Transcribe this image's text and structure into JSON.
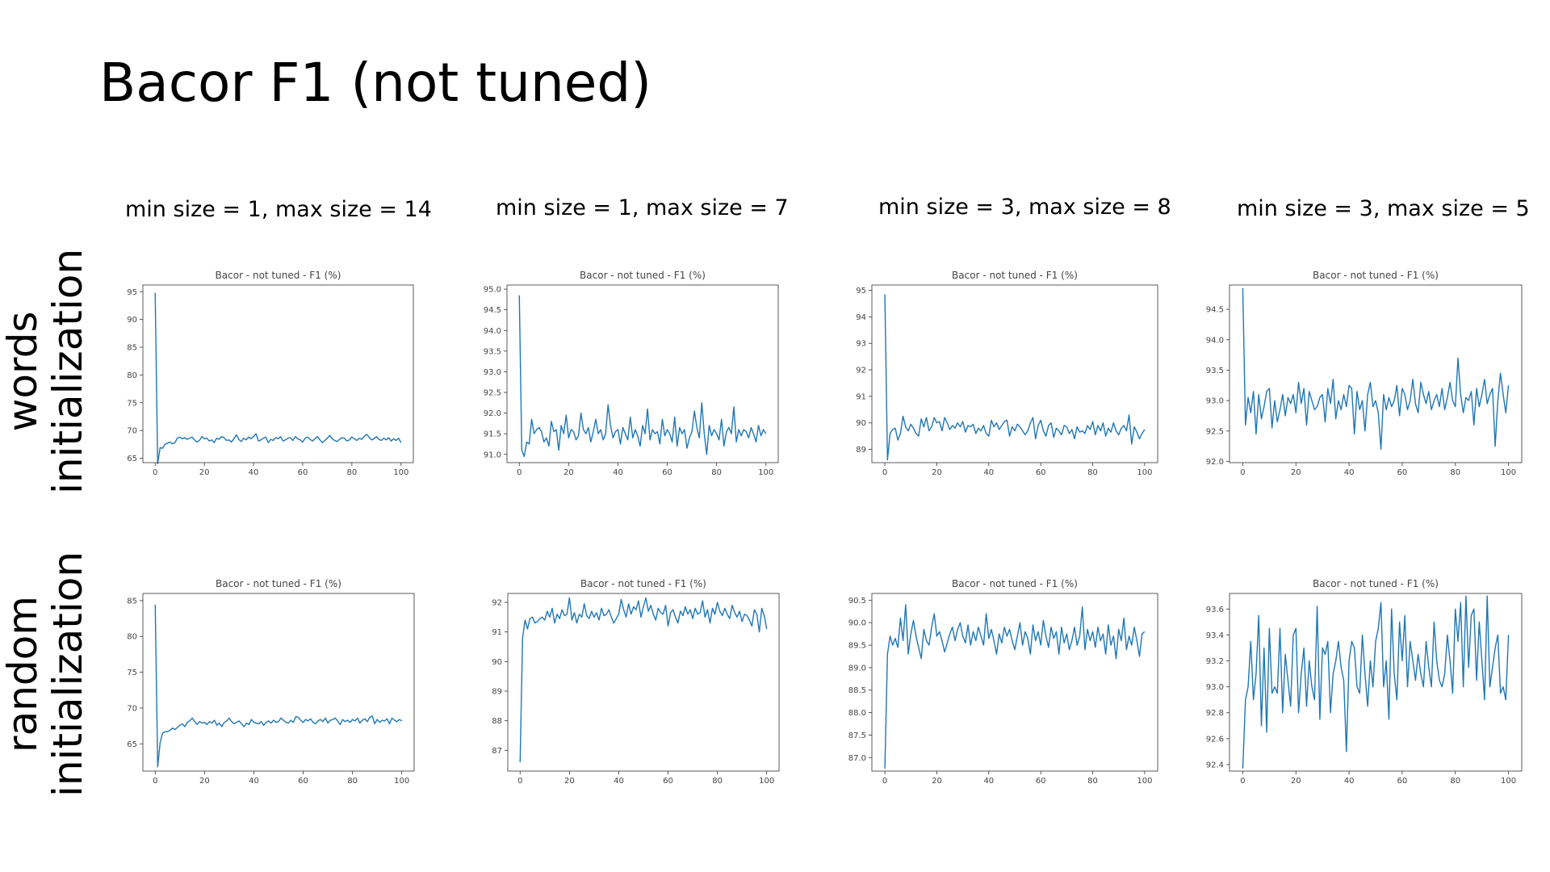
{
  "title": "Bacor F1 (not tuned)",
  "columns": [
    "min size = 1, max size = 14",
    "min size = 1, max size = 7",
    "min size = 3, max size = 8",
    "min size = 3, max size = 5"
  ],
  "rows": [
    {
      "line1": "words",
      "line2": "initialization"
    },
    {
      "line1": "random",
      "line2": "initialization"
    }
  ],
  "colors": {
    "line": "#1f77b4",
    "axis": "#333333",
    "text": "#444444"
  },
  "chart_data": [
    {
      "type": "line",
      "title": "Bacor - not tuned - F1 (%)",
      "xlim": [
        -5,
        105
      ],
      "ylim": [
        64.2,
        96.2
      ],
      "xticks": [
        0,
        20,
        40,
        60,
        80,
        100
      ],
      "yticks": [
        65,
        70,
        75,
        80,
        85,
        90,
        95
      ],
      "ytick_decimals": 0,
      "series": [
        {
          "x_start": 0,
          "x_step": 1,
          "values": [
            94.8,
            64.0,
            66.9,
            66.8,
            67.5,
            67.7,
            67.9,
            67.6,
            67.8,
            68.6,
            68.8,
            68.5,
            68.7,
            68.4,
            68.6,
            68.8,
            68.3,
            67.9,
            68.2,
            68.9,
            68.5,
            68.6,
            68.1,
            68.3,
            67.8,
            68.6,
            68.4,
            68.9,
            68.7,
            68.2,
            68.3,
            67.9,
            68.5,
            69.2,
            68.4,
            68.0,
            68.6,
            68.3,
            68.8,
            68.5,
            68.9,
            69.4,
            68.1,
            68.3,
            68.6,
            68.8,
            67.8,
            68.4,
            68.2,
            68.7,
            68.5,
            68.9,
            68.1,
            68.3,
            68.6,
            68.7,
            68.2,
            68.9,
            68.5,
            68.3,
            67.9,
            68.6,
            68.8,
            68.4,
            68.1,
            68.5,
            68.9,
            68.3,
            67.8,
            68.2,
            68.6,
            69.1,
            68.5,
            68.2,
            68.0,
            68.4,
            68.7,
            68.6,
            68.1,
            68.3,
            68.8,
            68.5,
            68.2,
            68.6,
            68.4,
            68.9,
            69.3,
            68.8,
            68.3,
            68.5,
            68.9,
            68.4,
            68.2,
            68.6,
            68.3,
            68.7,
            68.1,
            68.5,
            68.2,
            68.6,
            67.8
          ]
        }
      ]
    },
    {
      "type": "line",
      "title": "Bacor - not tuned - F1 (%)",
      "xlim": [
        -5,
        105
      ],
      "ylim": [
        90.8,
        95.1
      ],
      "xticks": [
        0,
        20,
        40,
        60,
        80,
        100
      ],
      "yticks": [
        91.0,
        91.5,
        92.0,
        92.5,
        93.0,
        93.5,
        94.0,
        94.5,
        95.0
      ],
      "ytick_decimals": 1,
      "series": [
        {
          "x_start": 0,
          "x_step": 1,
          "values": [
            94.85,
            91.1,
            90.95,
            91.3,
            91.25,
            91.85,
            91.5,
            91.6,
            91.65,
            91.55,
            91.3,
            91.4,
            91.2,
            91.8,
            91.55,
            91.6,
            91.1,
            91.7,
            91.5,
            91.95,
            91.4,
            91.6,
            91.55,
            91.35,
            91.45,
            92.0,
            91.6,
            91.5,
            91.65,
            91.3,
            91.55,
            91.85,
            91.5,
            91.6,
            91.35,
            91.5,
            92.2,
            91.7,
            91.4,
            91.55,
            91.6,
            91.25,
            91.65,
            91.5,
            91.35,
            91.9,
            91.4,
            91.6,
            91.45,
            91.2,
            91.7,
            91.5,
            92.1,
            91.35,
            91.6,
            91.5,
            91.55,
            91.25,
            91.85,
            91.45,
            91.6,
            91.5,
            91.3,
            91.9,
            91.2,
            91.65,
            91.5,
            91.6,
            91.15,
            91.4,
            91.55,
            92.05,
            91.65,
            91.4,
            92.25,
            91.5,
            91.0,
            91.7,
            91.45,
            91.6,
            91.5,
            91.35,
            91.85,
            91.2,
            91.55,
            91.65,
            91.5,
            92.15,
            91.3,
            91.6,
            91.45,
            91.6,
            91.55,
            91.4,
            91.65,
            91.5,
            91.3,
            91.7,
            91.45,
            91.6,
            91.5
          ]
        }
      ]
    },
    {
      "type": "line",
      "title": "Bacor - not tuned - F1 (%)",
      "xlim": [
        -5,
        105
      ],
      "ylim": [
        88.5,
        95.2
      ],
      "xticks": [
        0,
        20,
        40,
        60,
        80,
        100
      ],
      "yticks": [
        89,
        90,
        91,
        92,
        93,
        94,
        95
      ],
      "ytick_decimals": 0,
      "series": [
        {
          "x_start": 0,
          "x_step": 1,
          "values": [
            94.85,
            88.6,
            89.6,
            89.75,
            89.8,
            89.35,
            89.6,
            90.25,
            89.85,
            89.7,
            89.95,
            89.8,
            89.6,
            89.5,
            90.15,
            89.85,
            90.2,
            89.7,
            89.85,
            90.2,
            90.0,
            90.05,
            89.7,
            90.2,
            90.0,
            89.75,
            89.9,
            89.8,
            90.0,
            89.85,
            90.05,
            89.65,
            89.9,
            89.85,
            89.95,
            89.6,
            89.8,
            89.7,
            89.9,
            89.6,
            89.5,
            90.1,
            89.85,
            90.0,
            89.75,
            89.9,
            90.05,
            90.1,
            89.5,
            89.85,
            89.7,
            89.95,
            89.85,
            89.7,
            89.55,
            89.7,
            90.0,
            90.2,
            89.4,
            89.9,
            90.1,
            89.7,
            89.5,
            89.9,
            90.0,
            89.45,
            89.8,
            89.7,
            89.55,
            89.9,
            89.85,
            89.6,
            89.75,
            89.4,
            89.85,
            89.65,
            89.7,
            89.6,
            89.9,
            89.75,
            90.05,
            89.55,
            89.9,
            89.7,
            90.0,
            89.5,
            89.8,
            89.65,
            90.0,
            89.7,
            89.55,
            89.8,
            89.9,
            89.7,
            90.3,
            89.2,
            89.85,
            89.65,
            89.4,
            89.6,
            89.75
          ]
        }
      ]
    },
    {
      "type": "line",
      "title": "Bacor - not tuned - F1 (%)",
      "xlim": [
        -5,
        105
      ],
      "ylim": [
        91.98,
        94.9
      ],
      "xticks": [
        0,
        20,
        40,
        60,
        80,
        100
      ],
      "yticks": [
        92.0,
        92.5,
        93.0,
        93.5,
        94.0,
        94.5
      ],
      "ytick_decimals": 1,
      "series": [
        {
          "x_start": 0,
          "x_step": 1,
          "values": [
            94.85,
            92.6,
            93.05,
            92.8,
            93.15,
            92.45,
            93.1,
            92.7,
            92.9,
            93.15,
            93.2,
            92.55,
            93.0,
            92.65,
            92.85,
            93.1,
            92.75,
            93.05,
            92.95,
            93.1,
            92.8,
            93.3,
            92.95,
            93.2,
            92.6,
            93.15,
            93.0,
            92.85,
            92.9,
            93.05,
            93.1,
            92.65,
            93.2,
            92.95,
            93.35,
            92.7,
            93.0,
            92.85,
            93.1,
            92.9,
            93.25,
            93.2,
            92.45,
            93.15,
            92.85,
            93.0,
            92.5,
            93.1,
            93.3,
            92.9,
            93.0,
            92.8,
            92.2,
            93.1,
            92.85,
            93.05,
            92.9,
            93.0,
            93.25,
            92.75,
            93.2,
            93.1,
            92.85,
            93.0,
            93.35,
            92.95,
            92.8,
            93.3,
            93.1,
            92.95,
            93.15,
            92.85,
            93.0,
            93.1,
            92.9,
            93.2,
            92.85,
            93.05,
            93.3,
            93.0,
            92.9,
            93.7,
            93.1,
            92.8,
            93.05,
            93.0,
            93.15,
            92.6,
            93.2,
            92.9,
            93.1,
            93.35,
            92.95,
            93.1,
            93.2,
            92.25,
            93.0,
            93.45,
            93.1,
            92.8,
            93.25
          ]
        }
      ]
    },
    {
      "type": "line",
      "title": "Bacor - not tuned - F1 (%)",
      "xlim": [
        -5,
        105
      ],
      "ylim": [
        61.2,
        86.0
      ],
      "xticks": [
        0,
        20,
        40,
        60,
        80,
        100
      ],
      "yticks": [
        65,
        70,
        75,
        80,
        85
      ],
      "ytick_decimals": 0,
      "series": [
        {
          "x_start": 0,
          "x_step": 1,
          "values": [
            84.4,
            61.8,
            65.2,
            66.5,
            66.7,
            66.7,
            66.9,
            67.2,
            67.0,
            67.3,
            67.6,
            67.8,
            67.4,
            68.0,
            68.2,
            68.6,
            68.1,
            67.7,
            68.1,
            67.9,
            68.0,
            67.7,
            68.1,
            67.9,
            68.3,
            67.6,
            67.9,
            67.4,
            68.0,
            68.2,
            68.6,
            68.1,
            67.8,
            68.0,
            68.2,
            67.8,
            67.4,
            67.9,
            67.7,
            68.4,
            68.0,
            67.9,
            67.8,
            68.1,
            67.6,
            68.0,
            68.2,
            67.9,
            68.3,
            68.0,
            68.1,
            68.6,
            68.3,
            68.0,
            67.9,
            68.3,
            68.0,
            68.8,
            68.7,
            68.3,
            68.0,
            68.4,
            68.2,
            68.5,
            68.0,
            67.8,
            68.2,
            68.4,
            68.1,
            68.6,
            67.9,
            68.3,
            68.4,
            68.6,
            68.2,
            67.7,
            68.4,
            68.1,
            68.3,
            68.0,
            68.4,
            68.2,
            68.6,
            67.9,
            68.3,
            68.5,
            68.1,
            68.7,
            68.9,
            67.8,
            68.4,
            68.0,
            68.3,
            68.2,
            68.5,
            67.8,
            68.6,
            68.3,
            68.1,
            68.4,
            68.2
          ]
        }
      ]
    },
    {
      "type": "line",
      "title": "Bacor - not tuned - F1 (%)",
      "xlim": [
        -5,
        105
      ],
      "ylim": [
        86.3,
        92.3
      ],
      "xticks": [
        0,
        20,
        40,
        60,
        80,
        100
      ],
      "yticks": [
        87,
        88,
        89,
        90,
        91,
        92
      ],
      "ytick_decimals": 0,
      "series": [
        {
          "x_start": 0,
          "x_step": 1,
          "values": [
            86.6,
            90.8,
            91.4,
            91.1,
            91.45,
            91.5,
            91.3,
            91.35,
            91.45,
            91.5,
            91.4,
            91.7,
            91.5,
            91.8,
            91.3,
            91.6,
            91.45,
            91.75,
            91.55,
            91.6,
            92.15,
            91.4,
            91.65,
            91.3,
            91.6,
            91.5,
            91.95,
            91.55,
            91.45,
            91.7,
            91.5,
            91.65,
            91.4,
            91.8,
            91.55,
            91.6,
            91.75,
            91.5,
            91.3,
            91.45,
            91.6,
            92.1,
            91.75,
            91.5,
            91.95,
            91.6,
            91.85,
            91.75,
            92.05,
            91.5,
            91.85,
            92.15,
            91.7,
            91.9,
            91.6,
            91.4,
            91.8,
            91.65,
            91.6,
            91.9,
            91.2,
            91.65,
            91.75,
            91.5,
            91.3,
            91.7,
            91.55,
            91.85,
            91.6,
            91.75,
            91.45,
            91.8,
            91.6,
            91.65,
            92.05,
            91.5,
            91.75,
            91.3,
            91.8,
            91.6,
            92.0,
            91.7,
            91.55,
            91.8,
            91.6,
            91.45,
            91.9,
            91.65,
            91.5,
            91.7,
            91.35,
            91.6,
            91.55,
            91.4,
            91.2,
            91.75,
            91.6,
            91.0,
            91.8,
            91.55,
            91.1
          ]
        }
      ]
    },
    {
      "type": "line",
      "title": "Bacor - not tuned - F1 (%)",
      "xlim": [
        -5,
        105
      ],
      "ylim": [
        86.7,
        90.65
      ],
      "xticks": [
        0,
        20,
        40,
        60,
        80,
        100
      ],
      "yticks": [
        87.0,
        87.5,
        88.0,
        88.5,
        89.0,
        89.5,
        90.0,
        90.5
      ],
      "ytick_decimals": 1,
      "series": [
        {
          "x_start": 0,
          "x_step": 1,
          "values": [
            86.75,
            89.3,
            89.7,
            89.5,
            89.65,
            89.45,
            90.1,
            89.6,
            90.4,
            89.3,
            89.75,
            90.05,
            89.7,
            89.45,
            89.2,
            89.85,
            89.6,
            89.5,
            89.9,
            90.2,
            89.7,
            89.8,
            89.6,
            89.35,
            89.55,
            89.75,
            89.9,
            89.6,
            89.85,
            90.0,
            89.7,
            89.55,
            89.95,
            89.5,
            89.8,
            89.6,
            89.9,
            89.7,
            89.5,
            90.2,
            89.65,
            89.85,
            89.6,
            89.3,
            89.75,
            89.55,
            89.9,
            89.7,
            89.85,
            89.6,
            89.4,
            89.7,
            90.0,
            89.5,
            89.8,
            89.65,
            89.3,
            89.95,
            89.6,
            89.8,
            89.5,
            90.05,
            89.7,
            89.45,
            89.9,
            89.65,
            89.8,
            89.3,
            89.9,
            89.55,
            89.75,
            89.4,
            89.6,
            89.9,
            89.5,
            89.7,
            90.35,
            89.4,
            89.85,
            89.6,
            89.8,
            89.45,
            89.9,
            89.6,
            89.75,
            89.3,
            89.95,
            89.5,
            89.7,
            89.2,
            89.85,
            89.6,
            90.1,
            89.4,
            89.7,
            89.5,
            89.9,
            89.6,
            89.25,
            89.75,
            89.8
          ]
        }
      ]
    },
    {
      "type": "line",
      "title": "Bacor - not tuned - F1 (%)",
      "xlim": [
        -5,
        105
      ],
      "ylim": [
        92.35,
        93.72
      ],
      "xticks": [
        0,
        20,
        40,
        60,
        80,
        100
      ],
      "yticks": [
        92.4,
        92.6,
        92.8,
        93.0,
        93.2,
        93.4,
        93.6
      ],
      "ytick_decimals": 1,
      "series": [
        {
          "x_start": 0,
          "x_step": 1,
          "values": [
            92.37,
            92.9,
            93.0,
            93.35,
            92.9,
            93.1,
            93.55,
            92.7,
            93.3,
            92.65,
            93.45,
            92.95,
            93.0,
            92.95,
            93.45,
            92.8,
            93.25,
            93.05,
            92.85,
            93.4,
            93.45,
            92.8,
            93.1,
            93.3,
            92.85,
            93.2,
            93.0,
            92.9,
            93.62,
            92.75,
            93.3,
            93.25,
            93.35,
            92.8,
            93.1,
            93.2,
            93.35,
            93.15,
            93.05,
            92.5,
            93.2,
            93.35,
            93.3,
            93.0,
            92.95,
            93.4,
            93.1,
            92.85,
            93.2,
            93.0,
            93.35,
            93.45,
            93.65,
            93.0,
            93.2,
            92.75,
            93.6,
            93.1,
            92.9,
            93.5,
            93.2,
            93.55,
            93.0,
            93.35,
            93.2,
            93.05,
            93.25,
            93.1,
            93.0,
            93.35,
            93.15,
            93.0,
            93.5,
            93.2,
            93.05,
            93.0,
            93.1,
            93.4,
            93.2,
            92.95,
            93.6,
            93.35,
            93.65,
            93.0,
            93.7,
            93.15,
            93.55,
            93.6,
            93.05,
            93.5,
            93.2,
            92.9,
            93.7,
            93.0,
            93.15,
            93.3,
            93.4,
            92.95,
            93.0,
            92.9,
            93.4
          ]
        }
      ]
    }
  ]
}
